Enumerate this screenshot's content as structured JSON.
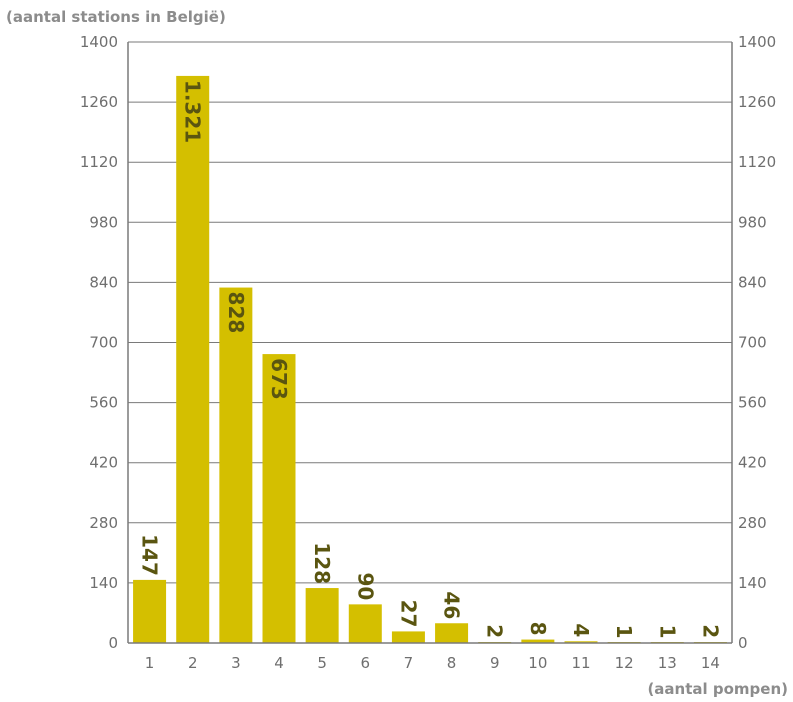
{
  "colors": {
    "bar": "#d4bf00",
    "axis": "#7a7a7a",
    "label": "#5a5510",
    "tick": "#6f6f6f",
    "title": "#8c8c8c"
  },
  "chart_data": {
    "type": "bar",
    "title": "",
    "ylabel": "(aantal stations in België)",
    "xlabel": "(aantal pompen)",
    "categories": [
      "1",
      "2",
      "3",
      "4",
      "5",
      "6",
      "7",
      "8",
      "9",
      "10",
      "11",
      "12",
      "13",
      "14"
    ],
    "values": [
      147,
      1321,
      828,
      673,
      128,
      90,
      27,
      46,
      2,
      8,
      4,
      1,
      1,
      2
    ],
    "value_labels": [
      "147",
      "1.321",
      "828",
      "673",
      "128",
      "90",
      "27",
      "46",
      "2",
      "8",
      "4",
      "1",
      "1",
      "2"
    ],
    "ylim": [
      0,
      1400
    ],
    "yticks": [
      "0",
      "140",
      "280",
      "420",
      "560",
      "700",
      "840",
      "980",
      "1120",
      "1260",
      "1400"
    ],
    "grid": "horizontal",
    "y_axis_both_sides": true,
    "legend": "none"
  }
}
